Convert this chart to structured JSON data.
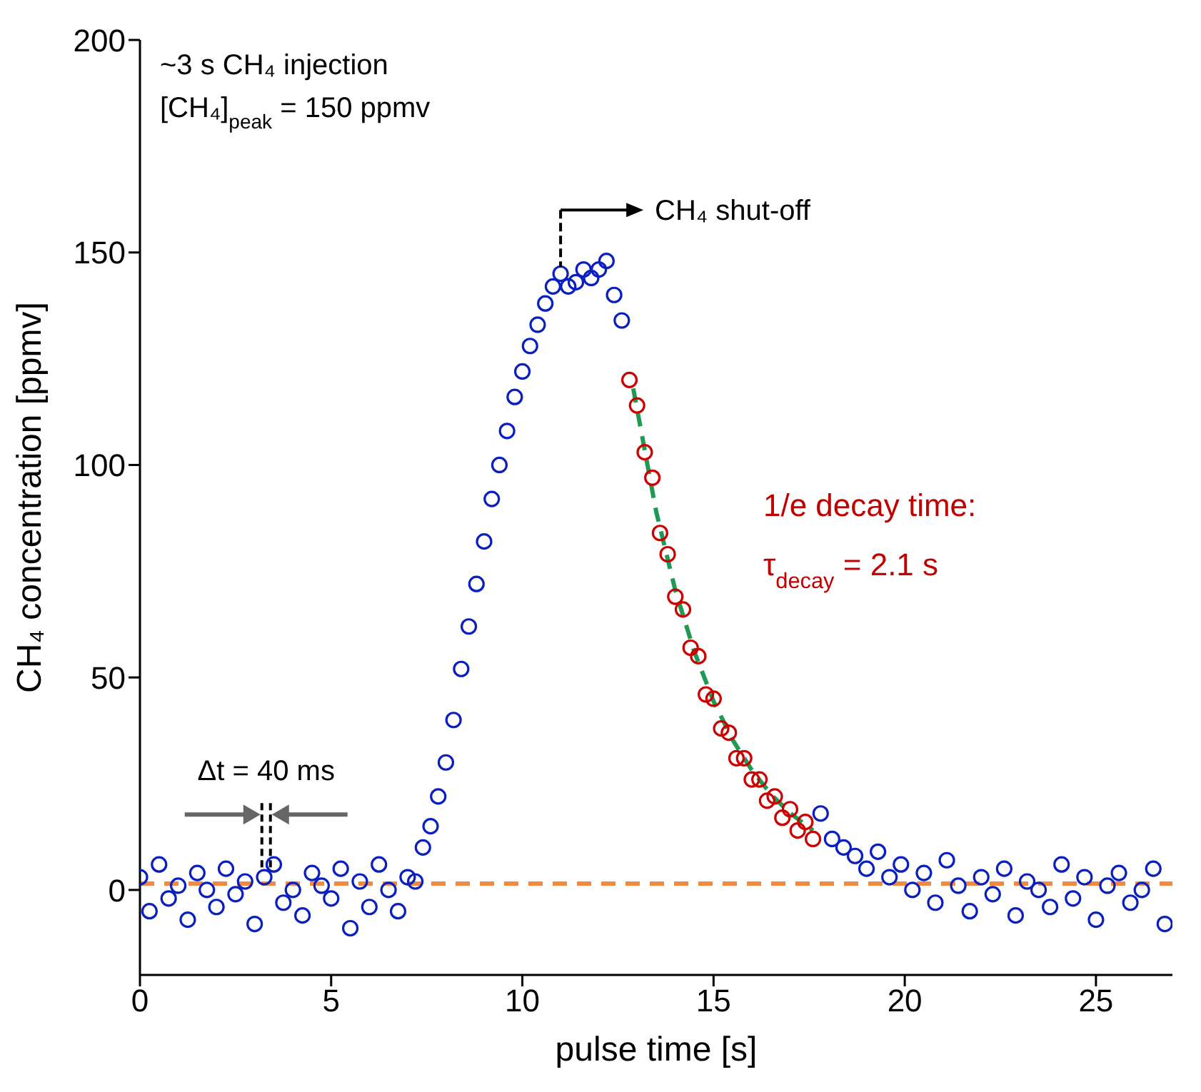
{
  "chart_data": {
    "type": "scatter",
    "xlabel": "pulse time [s]",
    "ylabel": "CH₄ concentration [ppmv]",
    "xlim": [
      0,
      27
    ],
    "xticks": [
      0,
      5,
      10,
      15,
      20,
      25
    ],
    "ylim": [
      -20,
      200
    ],
    "yticks": [
      0,
      50,
      100,
      150,
      200
    ],
    "marker": "circle",
    "series": [
      {
        "color": "#0a1fbf",
        "x": [
          0,
          0.25,
          0.5,
          0.75,
          1,
          1.25,
          1.5,
          1.75,
          2,
          2.25,
          2.5,
          2.75,
          3,
          3.25,
          3.5,
          3.75,
          4,
          4.25,
          4.5,
          4.75,
          5,
          5.25,
          5.5,
          5.75,
          6,
          6.25,
          6.5,
          6.75,
          7,
          7.2,
          7.4,
          7.6,
          7.8,
          8,
          8.2,
          8.4,
          8.6,
          8.8,
          9,
          9.2,
          9.4,
          9.6,
          9.8,
          10,
          10.2,
          10.4,
          10.6,
          10.8,
          11,
          11.2,
          11.4,
          11.6,
          11.8,
          12,
          12.2,
          12.4,
          12.6,
          17.8,
          18.1,
          18.4,
          18.7,
          19,
          19.3,
          19.6,
          19.9,
          20.2,
          20.5,
          20.8,
          21.1,
          21.4,
          21.7,
          22,
          22.3,
          22.6,
          22.9,
          23.2,
          23.5,
          23.8,
          24.1,
          24.4,
          24.7,
          25,
          25.3,
          25.6,
          25.9,
          26.2,
          26.5,
          26.8
        ],
        "values": [
          3,
          -5,
          6,
          -2,
          1,
          -7,
          4,
          0,
          -4,
          5,
          -1,
          2,
          -8,
          3,
          6,
          -3,
          0,
          -6,
          4,
          1,
          -2,
          5,
          -9,
          2,
          -4,
          6,
          0,
          -5,
          3,
          2,
          10,
          15,
          22,
          30,
          40,
          52,
          62,
          72,
          82,
          92,
          100,
          108,
          116,
          122,
          128,
          133,
          138,
          142,
          145,
          142,
          143,
          146,
          144,
          146,
          148,
          140,
          134,
          18,
          12,
          10,
          8,
          5,
          9,
          3,
          6,
          0,
          4,
          -3,
          7,
          1,
          -5,
          3,
          -1,
          5,
          -6,
          2,
          0,
          -4,
          6,
          -2,
          3,
          -7,
          1,
          4,
          -3,
          0,
          5,
          -8
        ]
      },
      {
        "color": "#cc0000",
        "x": [
          12.8,
          13,
          13.2,
          13.4,
          13.6,
          13.8,
          14,
          14.2,
          14.4,
          14.6,
          14.8,
          15,
          15.2,
          15.4,
          15.6,
          15.8,
          16,
          16.2,
          16.4,
          16.6,
          16.8,
          17,
          17.2,
          17.4,
          17.6
        ],
        "values": [
          120,
          114,
          103,
          97,
          84,
          79,
          69,
          66,
          57,
          55,
          46,
          45,
          38,
          37,
          31,
          31,
          26,
          26,
          21,
          22,
          17,
          19,
          14,
          16,
          12
        ]
      },
      {
        "type": "line",
        "color": "#1e9a55",
        "line_style": "dashed",
        "marker": "none",
        "x": [
          12.9,
          13.5,
          14,
          14.5,
          15,
          15.5,
          16,
          16.5,
          17,
          17.6
        ],
        "values": [
          118,
          89,
          70.5,
          56,
          44.4,
          35.3,
          28.2,
          22.5,
          18.1,
          14
        ]
      }
    ],
    "ref_lines": [
      {
        "axis": "y",
        "value": 1.5,
        "color": "#f08a40",
        "line_style": "dashed"
      }
    ],
    "annotations": [
      "~3 s CH₄ injection",
      "[CH₄]$_{peak}$ = 150 ppmv",
      "CH₄ shut-off",
      "1/e decay time:",
      "τ$_{decay}$ = 2.1 s",
      {
        "text": "Δt = 40 ms",
        "x": 3.3,
        "y": 5
      }
    ]
  }
}
